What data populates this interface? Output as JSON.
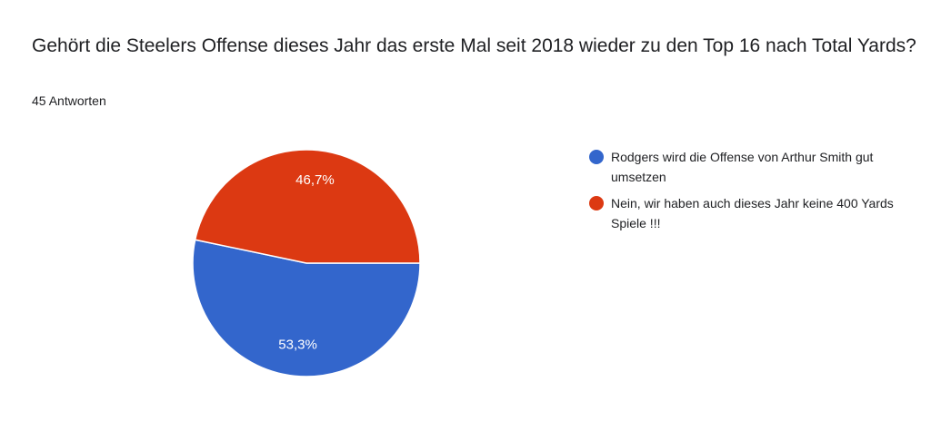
{
  "question": {
    "title": "Gehört die Steelers Offense dieses Jahr das erste Mal seit 2018 wieder zu den Top 16 nach Total Yards?",
    "response_count": "45 Antworten"
  },
  "chart_data": {
    "type": "pie",
    "title": "Gehört die Steelers Offense dieses Jahr das erste Mal seit 2018 wieder zu den Top 16 nach Total Yards?",
    "subtitle": "45 Antworten",
    "legend_placement": "right",
    "slices": [
      {
        "label": "Rodgers wird die Offense von Arthur Smith gut umsetzen",
        "value": 53.3,
        "display": "53,3%",
        "color": "#3366cc"
      },
      {
        "label": "Nein, wir haben auch dieses Jahr keine 400 Yards Spiele !!!",
        "value": 46.7,
        "display": "46,7%",
        "color": "#dc3912"
      }
    ]
  }
}
